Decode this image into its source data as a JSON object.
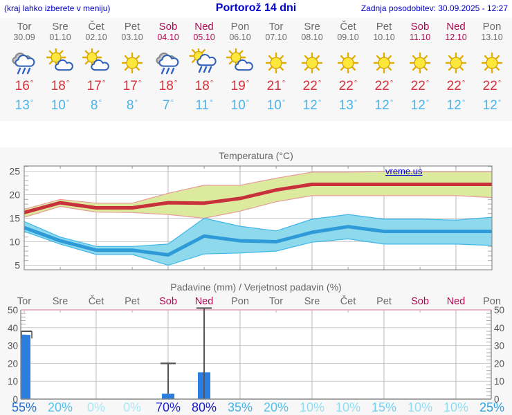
{
  "header": {
    "hint": "(kraj lahko izberete v meniju)",
    "title": "Portorož 14 dni",
    "updated": "Zadnja posodobitev: 30.09.2025 - 12:27"
  },
  "symbols": {
    "degree": "°"
  },
  "colors": {
    "link_blue": "#0000cc",
    "day_gray": "#6b6b6b",
    "weekend_red": "#b00a50",
    "high_red": "#d8323c",
    "low_blue": "#4ab3ea",
    "bar_blue": "#2b7de0",
    "watermark_blue": "#0000dd"
  },
  "forecast": {
    "days": [
      {
        "name": "Tor",
        "date": "30.09",
        "weekend": false,
        "icon": "rain-icon",
        "high": 16,
        "low": 13
      },
      {
        "name": "Sre",
        "date": "01.10",
        "weekend": false,
        "icon": "sun-cloud-icon",
        "high": 18,
        "low": 10
      },
      {
        "name": "Čet",
        "date": "02.10",
        "weekend": false,
        "icon": "sun-cloud-icon",
        "high": 17,
        "low": 8
      },
      {
        "name": "Pet",
        "date": "03.10",
        "weekend": false,
        "icon": "sun-icon",
        "high": 17,
        "low": 8
      },
      {
        "name": "Sob",
        "date": "04.10",
        "weekend": true,
        "icon": "rain-icon",
        "high": 18,
        "low": 7
      },
      {
        "name": "Ned",
        "date": "05.10",
        "weekend": true,
        "icon": "sun-cloud-rain-icon",
        "high": 18,
        "low": 11
      },
      {
        "name": "Pon",
        "date": "06.10",
        "weekend": false,
        "icon": "sun-cloud-icon",
        "high": 19,
        "low": 10
      },
      {
        "name": "Tor",
        "date": "07.10",
        "weekend": false,
        "icon": "sun-icon",
        "high": 21,
        "low": 10
      },
      {
        "name": "Sre",
        "date": "08.10",
        "weekend": false,
        "icon": "sun-icon",
        "high": 22,
        "low": 12
      },
      {
        "name": "Čet",
        "date": "09.10",
        "weekend": false,
        "icon": "sun-icon",
        "high": 22,
        "low": 13
      },
      {
        "name": "Pet",
        "date": "10.10",
        "weekend": false,
        "icon": "sun-icon",
        "high": 22,
        "low": 12
      },
      {
        "name": "Sob",
        "date": "11.10",
        "weekend": true,
        "icon": "sun-icon",
        "high": 22,
        "low": 12
      },
      {
        "name": "Ned",
        "date": "12.10",
        "weekend": true,
        "icon": "sun-icon",
        "high": 22,
        "low": 12
      },
      {
        "name": "Pon",
        "date": "13.10",
        "weekend": false,
        "icon": "sun-icon",
        "high": 22,
        "low": 12
      }
    ]
  },
  "chart_data": [
    {
      "type": "line",
      "title": "Temperatura (°C)",
      "watermark": "vreme.us",
      "x_labels": [
        "Tor",
        "Sre",
        "Čet",
        "Pet",
        "Sob",
        "Ned",
        "Pon",
        "Tor",
        "Sre",
        "Čet",
        "Pet",
        "Sob",
        "Ned",
        "Pon"
      ],
      "ylim": [
        4,
        26.1
      ],
      "yticks": [
        5,
        10,
        15,
        20,
        25
      ],
      "grid": true,
      "series": [
        {
          "name": "max-temp",
          "color": "#c8303c",
          "values": [
            16.2,
            18.3,
            17.2,
            17.2,
            18.3,
            18.2,
            19.2,
            21.0,
            22.2,
            22.2,
            22.2,
            22.2,
            22.2,
            22.2
          ]
        },
        {
          "name": "min-temp",
          "color": "#2e9ad8",
          "values": [
            13.0,
            10.2,
            8.2,
            8.2,
            7.2,
            11.2,
            10.2,
            10.0,
            12.0,
            13.2,
            12.2,
            12.2,
            12.2,
            12.2
          ]
        }
      ],
      "bands": [
        {
          "name": "max-temp-range",
          "fill": "#dcea9e",
          "edge": "#e89b9b",
          "upper": [
            16.9,
            19.0,
            18.2,
            18.2,
            20.3,
            22.0,
            22.0,
            23.5,
            24.8,
            24.8,
            24.9,
            24.9,
            24.9,
            24.9
          ],
          "lower": [
            15.2,
            17.5,
            16.3,
            16.2,
            15.8,
            15.0,
            16.5,
            18.5,
            19.8,
            19.8,
            19.8,
            19.8,
            19.8,
            19.4
          ]
        },
        {
          "name": "min-temp-range",
          "fill": "#8ed9ec",
          "edge": "#3fb6e8",
          "upper": [
            14.3,
            11.0,
            9.0,
            9.0,
            9.5,
            15.0,
            13.3,
            12.3,
            14.8,
            15.8,
            14.8,
            14.8,
            14.6,
            15.2
          ],
          "lower": [
            12.2,
            9.5,
            7.3,
            7.3,
            5.0,
            7.4,
            7.6,
            8.0,
            9.9,
            10.6,
            9.5,
            9.5,
            9.5,
            9.2
          ]
        }
      ]
    },
    {
      "type": "bar",
      "title": "Padavine (mm) / Verjetnost padavin (%)",
      "x_labels": [
        "Tor",
        "Sre",
        "Čet",
        "Pet",
        "Sob",
        "Ned",
        "Pon",
        "Tor",
        "Sre",
        "Čet",
        "Pet",
        "Sob",
        "Ned",
        "Pon"
      ],
      "ylim": [
        0,
        51
      ],
      "yticks": [
        0,
        10,
        20,
        30,
        40,
        50
      ],
      "bar_color": "#2b7de0",
      "values": [
        36,
        0,
        0,
        0,
        3,
        15,
        0,
        0,
        0,
        0,
        0,
        0,
        0,
        0
      ],
      "whiskers": [
        {
          "day": 0,
          "lo": 34,
          "hi": 38,
          "bracket": true
        },
        {
          "day": 4,
          "lo": 3,
          "hi": 20,
          "bracket": false
        },
        {
          "day": 5,
          "lo": 0,
          "hi": 51,
          "bracket": false
        }
      ],
      "probabilities": [
        {
          "label": "55%",
          "color": "#1f6fd4"
        },
        {
          "label": "20%",
          "color": "#52c2ea"
        },
        {
          "label": "0%",
          "color": "#abe7f6"
        },
        {
          "label": "0%",
          "color": "#abe7f6"
        },
        {
          "label": "70%",
          "color": "#1d24cf"
        },
        {
          "label": "80%",
          "color": "#161cc2"
        },
        {
          "label": "35%",
          "color": "#41b2e6"
        },
        {
          "label": "20%",
          "color": "#52c2ea"
        },
        {
          "label": "10%",
          "color": "#90ddf3"
        },
        {
          "label": "10%",
          "color": "#90ddf3"
        },
        {
          "label": "15%",
          "color": "#73d1ee"
        },
        {
          "label": "10%",
          "color": "#90ddf3"
        },
        {
          "label": "10%",
          "color": "#90ddf3"
        },
        {
          "label": "25%",
          "color": "#2ea1de"
        }
      ]
    }
  ]
}
